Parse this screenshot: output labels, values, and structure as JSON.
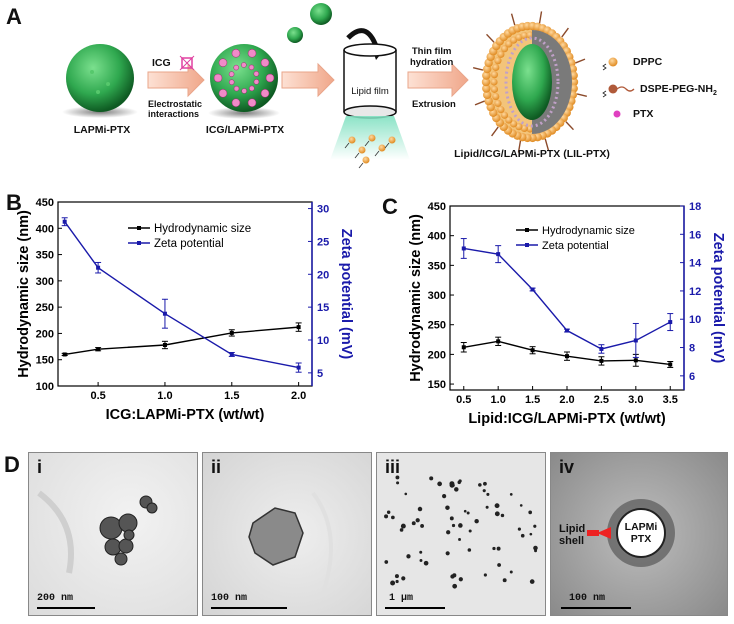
{
  "panel_labels": {
    "a": "A",
    "b": "B",
    "c": "C",
    "d": "D"
  },
  "schematic": {
    "lapmi_label": "LAPMi-PTX",
    "icg_label": "ICG",
    "electrostatic_label_1": "Electrostatic",
    "electrostatic_label_2": "interactions",
    "icg_lapmi_label": "ICG/LAPMi-PTX",
    "lipid_film_label": "Lipid film",
    "thin_film_label_1": "Thin film",
    "thin_film_label_2": "hydration",
    "extrusion_label": "Extrusion",
    "product_label": "Lipid/ICG/LAPMi-PTX (LIL-PTX)",
    "legend_dppc": "DPPC",
    "legend_dspe": "DSPE-PEG-NH",
    "legend_dspe_sub": "2",
    "legend_ptx": "PTX"
  },
  "chart_data": [
    {
      "type": "line",
      "xlabel": "ICG:LAPMi-PTX (wt/wt)",
      "ylabel": "Hydrodynamic size (nm)",
      "y2label": "Zeta potential (mV)",
      "x_ticks": [
        "0.5",
        "1.0",
        "1.5",
        "2.0"
      ],
      "xlim": [
        0.2,
        2.1
      ],
      "ylim": [
        100,
        450
      ],
      "y_ticks": [
        "100",
        "150",
        "200",
        "250",
        "300",
        "350",
        "400",
        "450"
      ],
      "y2lim": [
        3,
        31
      ],
      "y2_ticks": [
        "5",
        "10",
        "15",
        "20",
        "25",
        "30"
      ],
      "legend_position": "top-center",
      "series": [
        {
          "name": "Hydrodynamic size",
          "axis": "left",
          "color": "#000000",
          "x": [
            0.25,
            0.5,
            1.0,
            1.5,
            2.0
          ],
          "y": [
            160,
            170,
            178,
            201,
            212
          ],
          "err": [
            2,
            3,
            7,
            6,
            8
          ]
        },
        {
          "name": "Zeta potential",
          "axis": "right",
          "color": "#1a1aaa",
          "x": [
            0.25,
            0.5,
            1.0,
            1.5,
            2.0
          ],
          "y": [
            28.0,
            21.0,
            14.0,
            7.8,
            5.8
          ],
          "err": [
            0.6,
            0.8,
            2.2,
            0.3,
            0.7
          ]
        }
      ]
    },
    {
      "type": "line",
      "xlabel": "Lipid:ICG/LAPMi-PTX (wt/wt)",
      "ylabel": "Hydrodynamic size (nm)",
      "y2label": "Zeta potential (mV)",
      "x_ticks": [
        "0.5",
        "1.0",
        "1.5",
        "2.0",
        "2.5",
        "3.0",
        "3.5"
      ],
      "xlim": [
        0.3,
        3.7
      ],
      "ylim": [
        140,
        450
      ],
      "y_ticks": [
        "150",
        "200",
        "250",
        "300",
        "350",
        "400",
        "450"
      ],
      "y2lim": [
        5,
        18
      ],
      "y2_ticks": [
        "6",
        "8",
        "10",
        "12",
        "14",
        "16",
        "18"
      ],
      "legend_position": "top-right",
      "series": [
        {
          "name": "Hydrodynamic size",
          "axis": "left",
          "color": "#000000",
          "x": [
            0.5,
            1.0,
            1.5,
            2.0,
            2.5,
            3.0,
            3.5
          ],
          "y": [
            212,
            222,
            207,
            197,
            189,
            190,
            183
          ],
          "err": [
            8,
            7,
            6,
            7,
            7,
            10,
            5
          ]
        },
        {
          "name": "Zeta potential",
          "axis": "right",
          "color": "#1a1aaa",
          "x": [
            0.5,
            1.0,
            1.5,
            2.0,
            2.5,
            3.0,
            3.5
          ],
          "y": [
            15.0,
            14.6,
            12.1,
            9.2,
            7.9,
            8.5,
            9.8
          ],
          "err": [
            0.7,
            0.6,
            0.1,
            0.1,
            0.3,
            1.2,
            0.6
          ]
        }
      ]
    }
  ],
  "tem": [
    {
      "roman": "i",
      "scale": "200 nm"
    },
    {
      "roman": "ii",
      "scale": "100 nm"
    },
    {
      "roman": "iii",
      "scale": "1 µm"
    },
    {
      "roman": "iv",
      "scale": "100 nm",
      "annot_shell_1": "Lipid",
      "annot_shell_2": "shell",
      "annot_core_1": "LAPMi",
      "annot_core_2": "PTX"
    }
  ],
  "colors": {
    "zeta": "#1a1aaa",
    "size": "#000000",
    "arrow": "#f2b6a0",
    "core_green": "#2fa84f",
    "lipid_orange": "#f0a43a",
    "ptx_pink": "#e040c0"
  }
}
